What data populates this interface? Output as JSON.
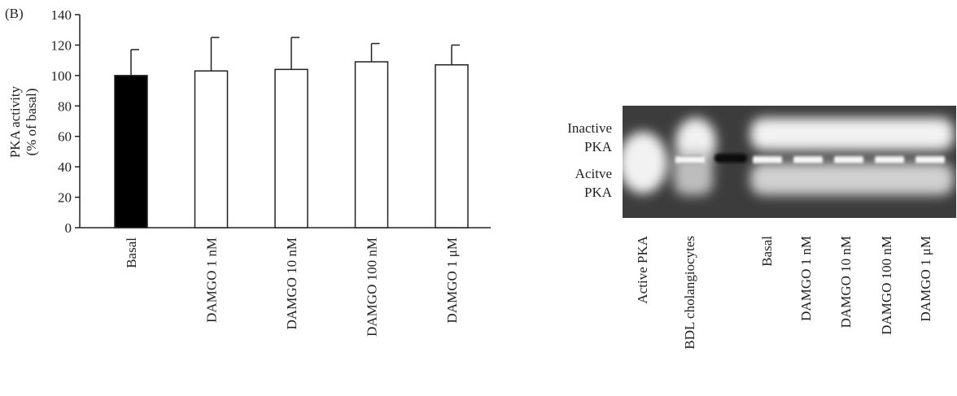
{
  "chart_data": {
    "type": "bar",
    "panel_label": "(B)",
    "y_label_lines": [
      "PKA activity",
      "(% of basal)"
    ],
    "categories": [
      "Basal",
      "DAMGO 1 nM",
      "DAMGO 10 nM",
      "DAMGO 100 nM",
      "DAMGO 1 μM"
    ],
    "values": [
      100,
      103,
      104,
      109,
      107
    ],
    "errors": [
      17,
      22,
      21,
      12,
      13
    ],
    "colors": [
      "#000000",
      "#ffffff",
      "#ffffff",
      "#ffffff",
      "#ffffff"
    ],
    "ylim": [
      0,
      140
    ],
    "yticks": [
      0,
      20,
      40,
      60,
      80,
      100,
      120,
      140
    ]
  },
  "gel": {
    "band_labels": [
      [
        "Inactive",
        "PKA"
      ],
      [
        "Acitve",
        "PKA"
      ]
    ],
    "lanes": [
      "Active PKA",
      "BDL cholangiocytes",
      "Basal",
      "DAMGO 1 nM",
      "DAMGO 10 nM",
      "DAMGO 100 nM",
      "DAMGO 1 μM"
    ]
  }
}
